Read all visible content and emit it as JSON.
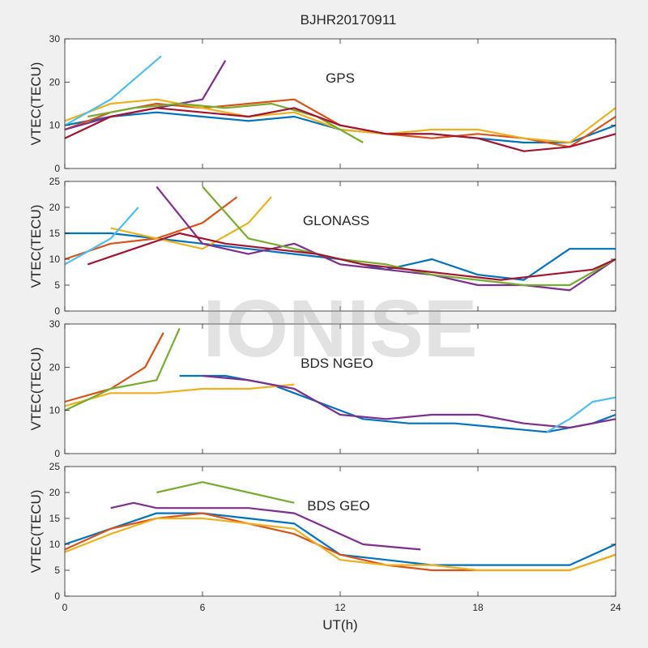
{
  "title": "BJHR20170911",
  "watermark": "IONISE",
  "background_color": "#f0f0f0",
  "axes_color": "#ffffff",
  "series_colors": [
    "#0072BD",
    "#D95319",
    "#EDB120",
    "#7E2F8E",
    "#77AC30",
    "#4DBEEE",
    "#A2142F"
  ],
  "chart_data": [
    {
      "type": "line",
      "label": "GPS",
      "xlabel": "",
      "ylabel": "VTEC(TECU)",
      "xlim": [
        0,
        24
      ],
      "ylim": [
        0,
        30
      ],
      "yticks": [
        0,
        10,
        20,
        30
      ],
      "grid": false,
      "series": [
        {
          "color_index": 0,
          "x": [
            0,
            2,
            4,
            6,
            8,
            10,
            12,
            14,
            16,
            18,
            20,
            22,
            24
          ],
          "y": [
            10,
            12,
            13,
            12,
            11,
            12,
            9,
            8,
            8,
            7,
            6,
            6,
            10
          ]
        },
        {
          "color_index": 1,
          "x": [
            0,
            2,
            4,
            6,
            8,
            10,
            12,
            14,
            16,
            18,
            20,
            22,
            24
          ],
          "y": [
            9,
            13,
            15,
            14,
            15,
            16,
            10,
            8,
            7,
            8,
            7,
            5,
            12
          ]
        },
        {
          "color_index": 2,
          "x": [
            0,
            2,
            4,
            6,
            8,
            10,
            12,
            14,
            16,
            18,
            20,
            22,
            24
          ],
          "y": [
            11,
            15,
            16,
            14,
            12,
            13,
            9,
            8,
            9,
            9,
            7,
            6,
            14
          ]
        },
        {
          "color_index": 3,
          "x": [
            0,
            2,
            4,
            6,
            7
          ],
          "y": [
            9,
            12,
            14,
            16,
            25
          ]
        },
        {
          "color_index": 4,
          "x": [
            1,
            3,
            5,
            7,
            9,
            11,
            13
          ],
          "y": [
            12,
            14,
            15,
            14,
            15,
            12,
            6
          ]
        },
        {
          "color_index": 5,
          "x": [
            0,
            2,
            4.2
          ],
          "y": [
            10,
            16,
            26
          ]
        },
        {
          "color_index": 6,
          "x": [
            0,
            2,
            4,
            6,
            8,
            10,
            12,
            14,
            16,
            18,
            20,
            22,
            24
          ],
          "y": [
            7,
            12,
            14,
            13,
            12,
            14,
            10,
            8,
            8,
            7,
            4,
            5,
            8
          ]
        }
      ]
    },
    {
      "type": "line",
      "label": "GLONASS",
      "xlabel": "",
      "ylabel": "VTEC(TECU)",
      "xlim": [
        0,
        24
      ],
      "ylim": [
        0,
        25
      ],
      "yticks": [
        0,
        5,
        10,
        15,
        20,
        25
      ],
      "grid": false,
      "series": [
        {
          "color_index": 0,
          "x": [
            0,
            2,
            4,
            6,
            8,
            10,
            12,
            14,
            16,
            18,
            20,
            22,
            24
          ],
          "y": [
            15,
            15,
            14,
            13,
            12,
            11,
            10,
            8,
            10,
            7,
            6,
            12,
            12
          ]
        },
        {
          "color_index": 1,
          "x": [
            0,
            2,
            4,
            6,
            7.5
          ],
          "y": [
            10,
            13,
            14,
            17,
            22
          ]
        },
        {
          "color_index": 2,
          "x": [
            2,
            4,
            6,
            8,
            9
          ],
          "y": [
            16,
            14,
            12,
            17,
            22
          ]
        },
        {
          "color_index": 3,
          "x": [
            4,
            6,
            8,
            10,
            12,
            14,
            16,
            18,
            20,
            22,
            24
          ],
          "y": [
            24,
            13,
            11,
            13,
            9,
            8,
            7,
            5,
            5,
            4,
            10
          ]
        },
        {
          "color_index": 4,
          "x": [
            6,
            8,
            10,
            12,
            14,
            16,
            18,
            20,
            22,
            24
          ],
          "y": [
            24,
            14,
            12,
            10,
            9,
            7,
            6,
            5,
            5,
            10
          ]
        },
        {
          "color_index": 5,
          "x": [
            0,
            2,
            3.2
          ],
          "y": [
            9,
            14,
            20
          ]
        },
        {
          "color_index": 6,
          "x": [
            1,
            3,
            5,
            7,
            9,
            11,
            13,
            15,
            17,
            19,
            21,
            23,
            24
          ],
          "y": [
            9,
            12,
            15,
            13,
            12,
            11,
            9,
            8,
            7,
            6,
            7,
            8,
            10
          ]
        }
      ]
    },
    {
      "type": "line",
      "label": "BDS NGEO",
      "xlabel": "",
      "ylabel": "VTEC(TECU)",
      "xlim": [
        0,
        24
      ],
      "ylim": [
        0,
        30
      ],
      "yticks": [
        0,
        10,
        20,
        30
      ],
      "grid": false,
      "series": [
        {
          "color_index": 0,
          "x": [
            5,
            7,
            9,
            11,
            13,
            15,
            17,
            19,
            21,
            23,
            24
          ],
          "y": [
            18,
            18,
            16,
            12,
            8,
            7,
            7,
            6,
            5,
            7,
            9
          ]
        },
        {
          "color_index": 1,
          "x": [
            0,
            2,
            3.5,
            4.3
          ],
          "y": [
            12,
            15,
            20,
            28
          ]
        },
        {
          "color_index": 2,
          "x": [
            0,
            2,
            4,
            6,
            8,
            10
          ],
          "y": [
            11,
            14,
            14,
            15,
            15,
            16
          ]
        },
        {
          "color_index": 3,
          "x": [
            6,
            8,
            10,
            12,
            14,
            16,
            18,
            20,
            22,
            24
          ],
          "y": [
            18,
            17,
            15,
            9,
            8,
            9,
            9,
            7,
            6,
            8
          ]
        },
        {
          "color_index": 4,
          "x": [
            0,
            2,
            4,
            5
          ],
          "y": [
            10,
            15,
            17,
            29
          ]
        },
        {
          "color_index": 5,
          "x": [
            21,
            22,
            23,
            24
          ],
          "y": [
            5,
            8,
            12,
            13
          ]
        }
      ]
    },
    {
      "type": "line",
      "label": "BDS GEO",
      "xlabel": "UT(h)",
      "ylabel": "VTEC(TECU)",
      "xlim": [
        0,
        24
      ],
      "ylim": [
        0,
        25
      ],
      "yticks": [
        0,
        5,
        10,
        15,
        20,
        25
      ],
      "xticks": [
        0,
        6,
        12,
        18,
        24
      ],
      "grid": false,
      "series": [
        {
          "color_index": 0,
          "x": [
            0,
            2,
            4,
            6,
            8,
            10,
            12,
            14,
            16,
            18,
            20,
            22,
            24
          ],
          "y": [
            10,
            13,
            16,
            16,
            15,
            14,
            8,
            7,
            6,
            6,
            6,
            6,
            10
          ]
        },
        {
          "color_index": 1,
          "x": [
            0,
            2,
            4,
            6,
            8,
            10,
            12,
            14,
            16,
            18,
            20,
            22,
            24
          ],
          "y": [
            9,
            13,
            15,
            16,
            14,
            12,
            8,
            6,
            5,
            5,
            5,
            5,
            8
          ]
        },
        {
          "color_index": 2,
          "x": [
            0,
            2,
            4,
            6,
            8,
            10,
            12,
            14,
            16,
            18,
            20,
            22,
            24
          ],
          "y": [
            8.5,
            12,
            15,
            15,
            14,
            13,
            7,
            6,
            6,
            5,
            5,
            5,
            8
          ]
        },
        {
          "color_index": 3,
          "x": [
            2,
            3,
            4,
            6,
            8,
            10,
            12,
            13,
            15.5
          ],
          "y": [
            17,
            18,
            17,
            17,
            17,
            16,
            12,
            10,
            9
          ]
        },
        {
          "color_index": 4,
          "x": [
            4,
            5,
            6,
            8,
            10
          ],
          "y": [
            20,
            21,
            22,
            20,
            18
          ]
        }
      ]
    }
  ]
}
